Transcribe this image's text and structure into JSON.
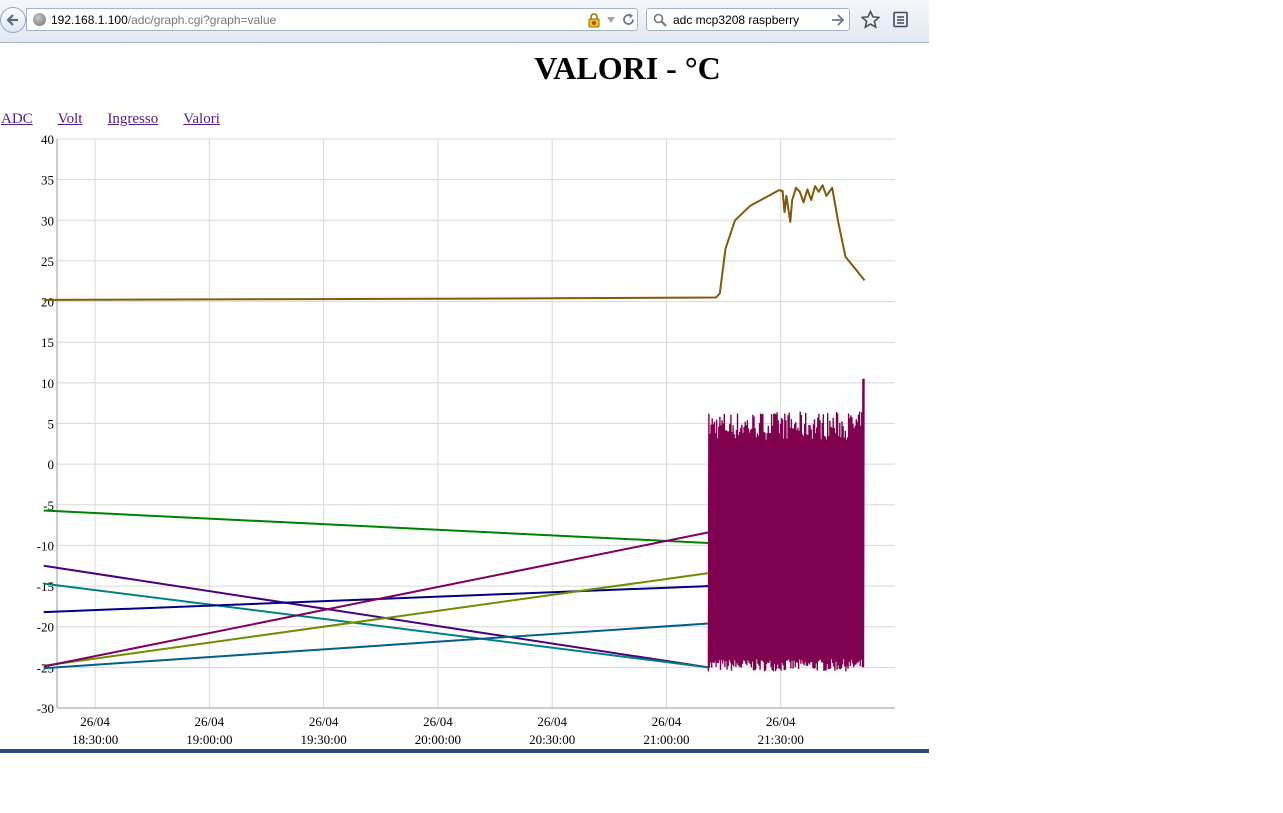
{
  "browser": {
    "url_host": "192.168.1.100",
    "url_path": "/adc/graph.cgi?graph=value",
    "search_query": "adc mcp3208 raspberry",
    "icons": [
      "back-icon",
      "globe-icon",
      "lock-icon",
      "dropmarker-icon",
      "reload-icon",
      "search-icon",
      "search-go-icon",
      "bookmark-star-icon",
      "bookmarks-menu-icon"
    ]
  },
  "page": {
    "title": "VALORI - °C",
    "nav": [
      "ADC",
      "Volt",
      "Ingresso",
      "Valori"
    ]
  },
  "chart_data": {
    "type": "line",
    "title": "",
    "xlabel": "",
    "ylabel": "",
    "ylim": [
      -30,
      40
    ],
    "yticks": [
      40,
      35,
      30,
      25,
      20,
      15,
      10,
      5,
      0,
      -5,
      -10,
      -15,
      -20,
      -25,
      -30
    ],
    "xlim": [
      "18:20:00",
      "22:00:00"
    ],
    "xticks": [
      {
        "date": "26/04",
        "time": "18:30:00"
      },
      {
        "date": "26/04",
        "time": "19:00:00"
      },
      {
        "date": "26/04",
        "time": "19:30:00"
      },
      {
        "date": "26/04",
        "time": "20:00:00"
      },
      {
        "date": "26/04",
        "time": "20:30:00"
      },
      {
        "date": "26/04",
        "time": "21:00:00"
      },
      {
        "date": "26/04",
        "time": "21:30:00"
      }
    ],
    "grid": true,
    "series": [
      {
        "color": "#805a0a",
        "points": [
          [
            "18:16:30",
            20.2
          ],
          [
            "19:30:00",
            20.3
          ],
          [
            "20:30:00",
            20.4
          ],
          [
            "21:13:00",
            20.5
          ],
          [
            "21:14:00",
            21.0
          ],
          [
            "21:15:30",
            26.5
          ],
          [
            "21:18:00",
            30.0
          ],
          [
            "21:22:00",
            31.8
          ],
          [
            "21:26:00",
            32.8
          ],
          [
            "21:29:30",
            33.7
          ],
          [
            "21:30:30",
            33.6
          ],
          [
            "21:31:00",
            31.0
          ],
          [
            "21:31:30",
            33.0
          ],
          [
            "21:32:30",
            29.8
          ],
          [
            "21:33:00",
            32.5
          ],
          [
            "21:34:00",
            34.0
          ],
          [
            "21:35:00",
            33.5
          ],
          [
            "21:36:00",
            32.2
          ],
          [
            "21:37:00",
            33.8
          ],
          [
            "21:38:00",
            32.5
          ],
          [
            "21:39:00",
            34.2
          ],
          [
            "21:40:00",
            33.5
          ],
          [
            "21:41:00",
            34.3
          ],
          [
            "21:42:00",
            33.0
          ],
          [
            "21:43:30",
            34.0
          ],
          [
            "21:45:00",
            30.0
          ],
          [
            "21:47:00",
            25.5
          ],
          [
            "21:50:00",
            23.8
          ],
          [
            "21:52:00",
            22.6
          ]
        ]
      },
      {
        "color": "#008000",
        "points": [
          [
            "18:16:30",
            -5.7
          ],
          [
            "21:11:00",
            -9.7
          ]
        ]
      },
      {
        "color": "#4b0082",
        "points": [
          [
            "18:16:30",
            -12.5
          ],
          [
            "21:11:00",
            -25.0
          ]
        ]
      },
      {
        "color": "#008080",
        "points": [
          [
            "18:16:30",
            -14.7
          ],
          [
            "21:11:00",
            -25.0
          ]
        ]
      },
      {
        "color": "#000080",
        "points": [
          [
            "18:16:30",
            -18.2
          ],
          [
            "21:11:00",
            -15.0
          ]
        ]
      },
      {
        "color": "#6b8e00",
        "points": [
          [
            "18:16:30",
            -24.8
          ],
          [
            "21:11:00",
            -13.4
          ]
        ]
      },
      {
        "color": "#005f8f",
        "points": [
          [
            "18:16:30",
            -25.1
          ],
          [
            "21:11:00",
            -19.6
          ]
        ]
      },
      {
        "color": "#800060",
        "points": [
          [
            "18:16:30",
            -24.9
          ],
          [
            "21:11:00",
            -8.4
          ]
        ]
      }
    ],
    "noise_series": {
      "color": "#800050",
      "windows": [
        [
          "18:10:00",
          "18:16:30"
        ],
        [
          "21:11:00",
          "21:52:00"
        ]
      ],
      "min": -25.5,
      "max": 6.5,
      "end_max": 10.5
    }
  }
}
